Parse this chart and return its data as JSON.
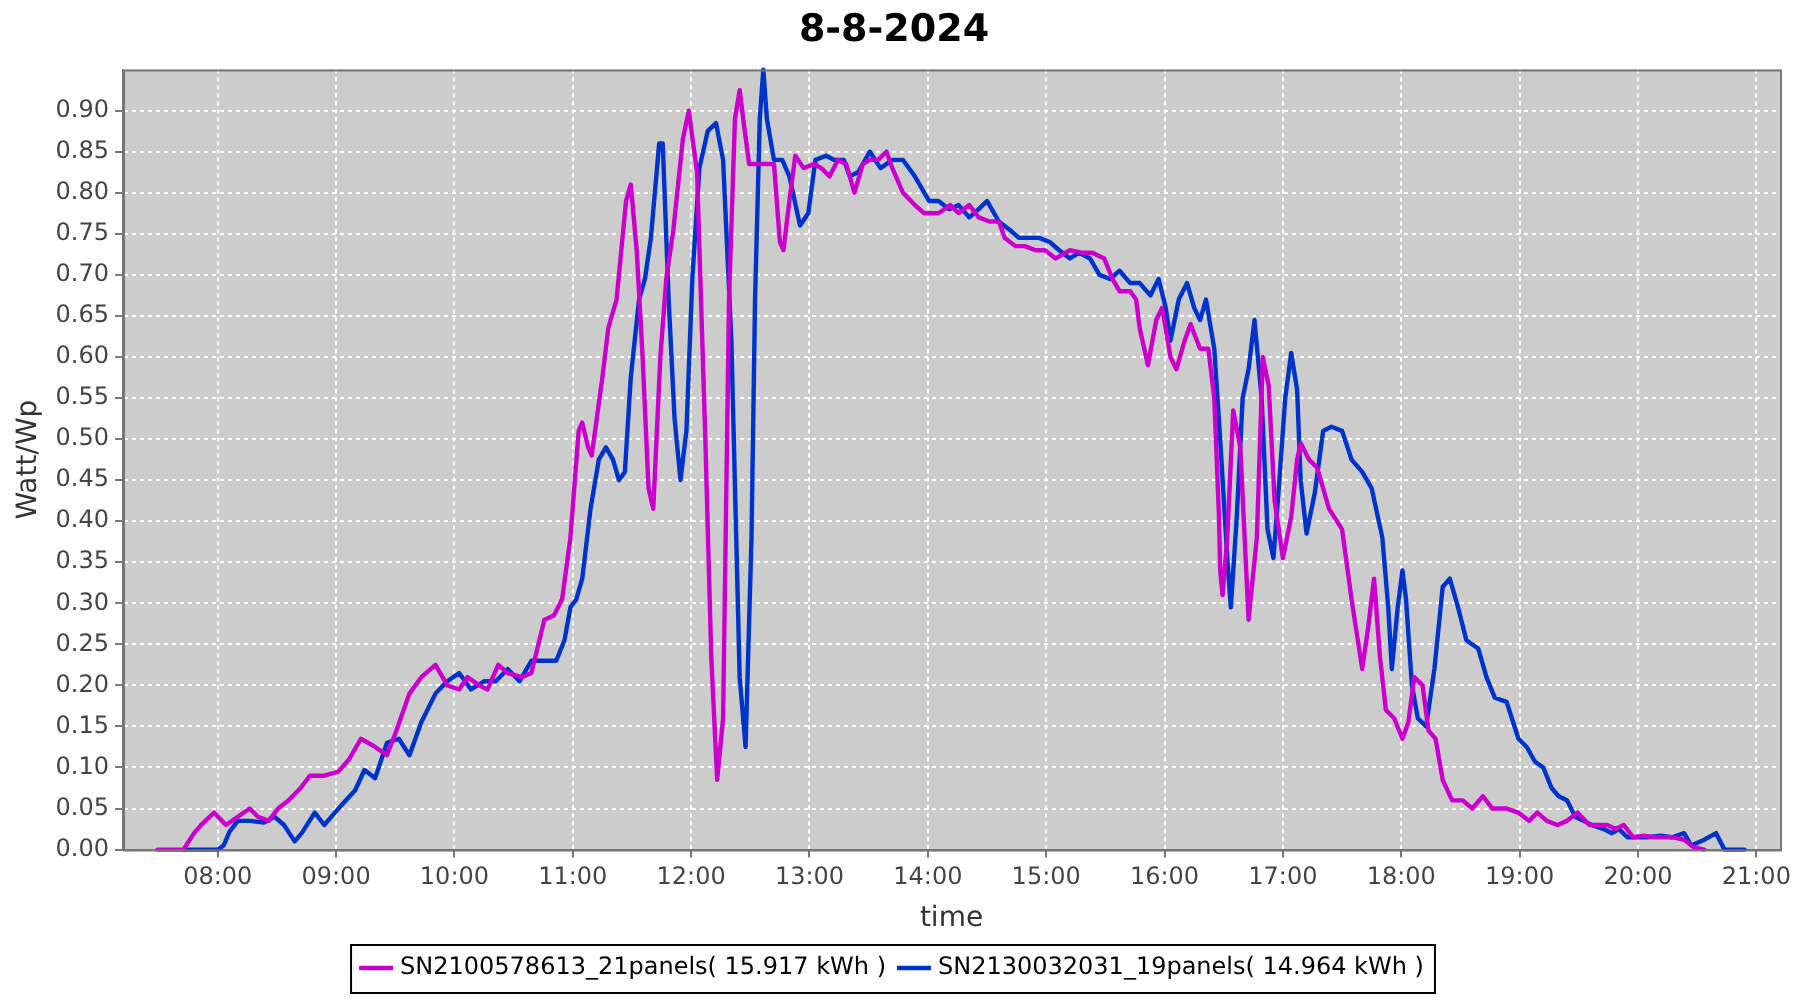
{
  "chart_data": {
    "type": "line",
    "title": "8-8-2024",
    "xlabel": "time",
    "ylabel": "Watt/Wp",
    "grid": true,
    "legend": "bottom",
    "marker": "none",
    "line_style": "solid",
    "xlim": [
      7.2,
      21.2
    ],
    "xticks": [
      {
        "value": 8,
        "label": "08:00"
      },
      {
        "value": 9,
        "label": "09:00"
      },
      {
        "value": 10,
        "label": "10:00"
      },
      {
        "value": 11,
        "label": "11:00"
      },
      {
        "value": 12,
        "label": "12:00"
      },
      {
        "value": 13,
        "label": "13:00"
      },
      {
        "value": 14,
        "label": "14:00"
      },
      {
        "value": 15,
        "label": "15:00"
      },
      {
        "value": 16,
        "label": "16:00"
      },
      {
        "value": 17,
        "label": "17:00"
      },
      {
        "value": 18,
        "label": "18:00"
      },
      {
        "value": 19,
        "label": "19:00"
      },
      {
        "value": 20,
        "label": "20:00"
      },
      {
        "value": 21,
        "label": "21:00"
      }
    ],
    "ylim": [
      0,
      0.95
    ],
    "yticks": [
      {
        "value": 0,
        "label": "0.00"
      },
      {
        "value": 0.05,
        "label": "0.05"
      },
      {
        "value": 0.1,
        "label": "0.10"
      },
      {
        "value": 0.15,
        "label": "0.15"
      },
      {
        "value": 0.2,
        "label": "0.20"
      },
      {
        "value": 0.25,
        "label": "0.25"
      },
      {
        "value": 0.3,
        "label": "0.30"
      },
      {
        "value": 0.35,
        "label": "0.35"
      },
      {
        "value": 0.4,
        "label": "0.40"
      },
      {
        "value": 0.45,
        "label": "0.45"
      },
      {
        "value": 0.5,
        "label": "0.50"
      },
      {
        "value": 0.55,
        "label": "0.55"
      },
      {
        "value": 0.6,
        "label": "0.60"
      },
      {
        "value": 0.65,
        "label": "0.65"
      },
      {
        "value": 0.7,
        "label": "0.70"
      },
      {
        "value": 0.75,
        "label": "0.75"
      },
      {
        "value": 0.8,
        "label": "0.80"
      },
      {
        "value": 0.85,
        "label": "0.85"
      },
      {
        "value": 0.9,
        "label": "0.90"
      }
    ],
    "series": [
      {
        "name": "SN2100578613_21panels( 15.917 kWh )",
        "color": "#cc00cc",
        "x": [
          7.49,
          7.71,
          7.8,
          7.86,
          7.97,
          8.07,
          8.17,
          8.27,
          8.34,
          8.43,
          8.51,
          8.6,
          8.7,
          8.78,
          8.9,
          9.02,
          9.11,
          9.21,
          9.33,
          9.43,
          9.51,
          9.62,
          9.72,
          9.84,
          9.94,
          10.04,
          10.11,
          10.21,
          10.28,
          10.37,
          10.45,
          10.57,
          10.65,
          10.76,
          10.84,
          10.91,
          10.98,
          11.05,
          11.08,
          11.13,
          11.16,
          11.25,
          11.3,
          11.37,
          11.45,
          11.49,
          11.54,
          11.59,
          11.64,
          11.68,
          11.74,
          11.79,
          11.85,
          11.93,
          11.98,
          12.05,
          12.12,
          12.17,
          12.22,
          12.27,
          12.32,
          12.37,
          12.41,
          12.44,
          12.49,
          12.63,
          12.7,
          12.75,
          12.78,
          12.83,
          12.88,
          12.95,
          13.04,
          13.1,
          13.17,
          13.24,
          13.31,
          13.38,
          13.45,
          13.51,
          13.58,
          13.65,
          13.7,
          13.79,
          13.89,
          13.97,
          14.09,
          14.19,
          14.26,
          14.35,
          14.43,
          14.52,
          14.6,
          14.65,
          14.74,
          14.82,
          14.91,
          14.99,
          15.08,
          15.2,
          15.3,
          15.39,
          15.49,
          15.56,
          15.62,
          15.71,
          15.76,
          15.79,
          15.86,
          15.93,
          15.98,
          16.05,
          16.1,
          16.17,
          16.22,
          16.3,
          16.37,
          16.42,
          16.46,
          16.47,
          16.49,
          16.53,
          16.58,
          16.64,
          16.71,
          16.78,
          16.83,
          16.88,
          16.93,
          17.0,
          17.07,
          17.12,
          17.15,
          17.22,
          17.29,
          17.39,
          17.5,
          17.58,
          17.67,
          17.72,
          17.77,
          17.82,
          17.87,
          17.94,
          18.01,
          18.06,
          18.11,
          18.18,
          18.23,
          18.29,
          18.35,
          18.43,
          18.52,
          18.6,
          18.69,
          18.77,
          18.89,
          18.99,
          19.08,
          19.15,
          19.23,
          19.32,
          19.4,
          19.49,
          19.59,
          19.66,
          19.74,
          19.81,
          19.88,
          19.96,
          20.05,
          20.13,
          20.3,
          20.39,
          20.47,
          20.56
        ],
        "values": [
          0,
          0,
          0.02,
          0.03,
          0.045,
          0.03,
          0.04,
          0.05,
          0.04,
          0.035,
          0.05,
          0.06,
          0.075,
          0.09,
          0.09,
          0.095,
          0.11,
          0.135,
          0.125,
          0.115,
          0.145,
          0.19,
          0.21,
          0.225,
          0.2,
          0.195,
          0.21,
          0.2,
          0.195,
          0.225,
          0.215,
          0.21,
          0.215,
          0.28,
          0.285,
          0.305,
          0.38,
          0.51,
          0.52,
          0.49,
          0.48,
          0.575,
          0.635,
          0.67,
          0.79,
          0.81,
          0.73,
          0.6,
          0.44,
          0.415,
          0.6,
          0.695,
          0.755,
          0.865,
          0.9,
          0.825,
          0.5,
          0.235,
          0.085,
          0.16,
          0.67,
          0.89,
          0.925,
          0.89,
          0.835,
          0.835,
          0.835,
          0.74,
          0.73,
          0.79,
          0.845,
          0.83,
          0.835,
          0.83,
          0.82,
          0.84,
          0.835,
          0.8,
          0.835,
          0.84,
          0.84,
          0.85,
          0.83,
          0.8,
          0.785,
          0.775,
          0.775,
          0.785,
          0.775,
          0.785,
          0.77,
          0.765,
          0.765,
          0.745,
          0.735,
          0.735,
          0.73,
          0.73,
          0.72,
          0.73,
          0.727,
          0.727,
          0.72,
          0.695,
          0.68,
          0.68,
          0.67,
          0.635,
          0.59,
          0.645,
          0.66,
          0.6,
          0.585,
          0.62,
          0.64,
          0.61,
          0.61,
          0.55,
          0.405,
          0.34,
          0.31,
          0.38,
          0.535,
          0.49,
          0.28,
          0.38,
          0.6,
          0.565,
          0.425,
          0.355,
          0.405,
          0.475,
          0.495,
          0.475,
          0.465,
          0.415,
          0.39,
          0.305,
          0.22,
          0.27,
          0.33,
          0.235,
          0.17,
          0.16,
          0.135,
          0.155,
          0.21,
          0.2,
          0.145,
          0.135,
          0.085,
          0.06,
          0.06,
          0.05,
          0.065,
          0.05,
          0.05,
          0.045,
          0.035,
          0.045,
          0.035,
          0.03,
          0.035,
          0.045,
          0.03,
          0.03,
          0.03,
          0.025,
          0.03,
          0.015,
          0.017,
          0.015,
          0.015,
          0.012,
          0.003,
          0
        ]
      },
      {
        "name": "SN2130032031_19panels( 14.964 kWh )",
        "color": "#0033cc",
        "x": [
          7.71,
          8.0,
          8.05,
          8.1,
          8.17,
          8.27,
          8.39,
          8.48,
          8.56,
          8.65,
          8.71,
          8.82,
          8.9,
          8.99,
          9.07,
          9.16,
          9.24,
          9.33,
          9.43,
          9.53,
          9.62,
          9.72,
          9.84,
          9.94,
          10.04,
          10.14,
          10.25,
          10.35,
          10.45,
          10.55,
          10.65,
          10.76,
          10.86,
          10.93,
          10.98,
          11.03,
          11.08,
          11.15,
          11.22,
          11.28,
          11.34,
          11.39,
          11.44,
          11.49,
          11.56,
          11.61,
          11.66,
          11.73,
          11.76,
          11.81,
          11.86,
          11.91,
          11.96,
          12.01,
          12.07,
          12.14,
          12.21,
          12.27,
          12.34,
          12.41,
          12.46,
          12.51,
          12.54,
          12.58,
          12.61,
          12.64,
          12.7,
          12.77,
          12.83,
          12.92,
          12.99,
          13.05,
          13.14,
          13.21,
          13.29,
          13.34,
          13.41,
          13.51,
          13.6,
          13.7,
          13.79,
          13.89,
          14.01,
          14.09,
          14.18,
          14.26,
          14.35,
          14.43,
          14.5,
          14.6,
          14.69,
          14.77,
          14.86,
          14.94,
          15.03,
          15.11,
          15.2,
          15.28,
          15.37,
          15.45,
          15.54,
          15.62,
          15.71,
          15.79,
          15.88,
          15.95,
          16.01,
          16.05,
          16.12,
          16.19,
          16.25,
          16.3,
          16.35,
          16.42,
          16.47,
          16.53,
          16.56,
          16.61,
          16.66,
          16.71,
          16.76,
          16.82,
          16.87,
          16.92,
          16.97,
          17.02,
          17.07,
          17.12,
          17.15,
          17.2,
          17.27,
          17.34,
          17.41,
          17.5,
          17.58,
          17.67,
          17.75,
          17.84,
          17.89,
          17.92,
          17.97,
          18.01,
          18.04,
          18.09,
          18.14,
          18.21,
          18.28,
          18.35,
          18.41,
          18.48,
          18.55,
          18.65,
          18.72,
          18.79,
          18.89,
          18.99,
          19.06,
          19.13,
          19.2,
          19.27,
          19.33,
          19.4,
          19.47,
          19.54,
          19.61,
          19.71,
          19.78,
          19.84,
          19.91,
          19.98,
          20.08,
          20.19,
          20.29,
          20.39,
          20.45,
          20.56,
          20.66,
          20.73,
          20.9
        ],
        "values": [
          0,
          0,
          0.005,
          0.022,
          0.035,
          0.035,
          0.033,
          0.04,
          0.03,
          0.01,
          0.02,
          0.045,
          0.03,
          0.045,
          0.058,
          0.072,
          0.097,
          0.087,
          0.13,
          0.135,
          0.115,
          0.155,
          0.19,
          0.205,
          0.215,
          0.195,
          0.205,
          0.205,
          0.22,
          0.205,
          0.23,
          0.23,
          0.23,
          0.255,
          0.295,
          0.305,
          0.33,
          0.415,
          0.475,
          0.49,
          0.475,
          0.45,
          0.46,
          0.575,
          0.67,
          0.695,
          0.745,
          0.86,
          0.86,
          0.67,
          0.525,
          0.45,
          0.51,
          0.695,
          0.83,
          0.875,
          0.885,
          0.84,
          0.62,
          0.21,
          0.125,
          0.38,
          0.67,
          0.89,
          0.95,
          0.89,
          0.84,
          0.84,
          0.82,
          0.76,
          0.775,
          0.84,
          0.845,
          0.84,
          0.84,
          0.82,
          0.825,
          0.85,
          0.83,
          0.84,
          0.84,
          0.82,
          0.79,
          0.79,
          0.78,
          0.785,
          0.77,
          0.78,
          0.79,
          0.765,
          0.755,
          0.745,
          0.745,
          0.745,
          0.74,
          0.73,
          0.72,
          0.727,
          0.72,
          0.7,
          0.695,
          0.705,
          0.69,
          0.69,
          0.675,
          0.695,
          0.66,
          0.62,
          0.67,
          0.69,
          0.66,
          0.645,
          0.67,
          0.61,
          0.5,
          0.355,
          0.295,
          0.405,
          0.55,
          0.585,
          0.645,
          0.55,
          0.39,
          0.355,
          0.45,
          0.55,
          0.605,
          0.56,
          0.45,
          0.385,
          0.435,
          0.51,
          0.515,
          0.51,
          0.475,
          0.46,
          0.44,
          0.38,
          0.295,
          0.22,
          0.295,
          0.34,
          0.305,
          0.2,
          0.16,
          0.15,
          0.22,
          0.32,
          0.33,
          0.295,
          0.255,
          0.245,
          0.21,
          0.185,
          0.18,
          0.135,
          0.125,
          0.107,
          0.1,
          0.075,
          0.065,
          0.06,
          0.04,
          0.035,
          0.03,
          0.025,
          0.02,
          0.025,
          0.015,
          0.015,
          0.015,
          0.017,
          0.015,
          0.02,
          0.005,
          0.012,
          0.02,
          0,
          0
        ]
      }
    ]
  }
}
